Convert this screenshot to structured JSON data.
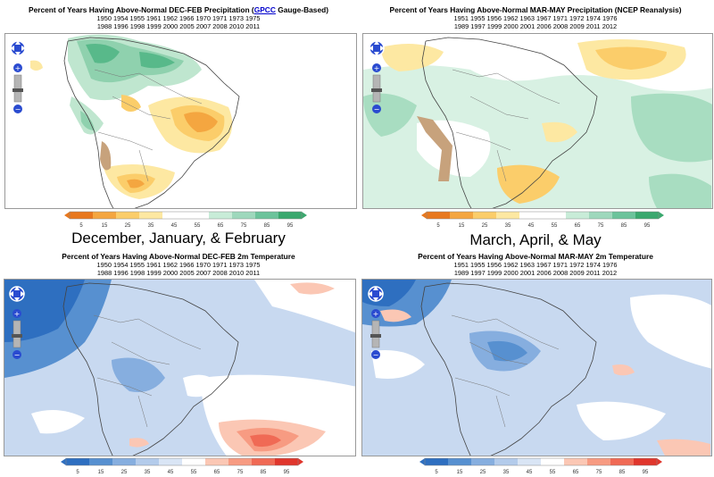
{
  "panels": [
    {
      "title_prefix": "Percent of Years Having Above-Normal DEC-FEB Precipitation (",
      "title_link": "GPCC",
      "title_suffix": " Gauge-Based)",
      "years_line1": "1950 1954 1955 1961 1962 1966 1970 1971 1973 1975",
      "years_line2": "1988 1996 1998 1999 2000 2005 2007 2008 2010 2011"
    },
    {
      "title_prefix": "Percent of Years Having Above-Normal MAR-MAY Precipitation (NCEP Reanalysis)",
      "title_link": "",
      "title_suffix": "",
      "years_line1": "1951 1955 1956 1962 1963 1967 1971 1972 1974 1976",
      "years_line2": "1989 1997 1999 2000 2001 2006 2008 2009 2011 2012"
    },
    {
      "title_prefix": "Percent of Years Having Above-Normal DEC-FEB 2m Temperature",
      "title_link": "",
      "title_suffix": "",
      "years_line1": "1950 1954 1955 1961 1962 1966 1970 1971 1973 1975",
      "years_line2": "1988 1996 1998 1999 2000 2005 2007 2008 2010 2011"
    },
    {
      "title_prefix": "Percent of Years Having Above-Normal MAR-MAY 2m Temperature",
      "title_link": "",
      "title_suffix": "",
      "years_line1": "1951 1955 1956 1962 1963 1967 1971 1972 1974 1976",
      "years_line2": "1989 1997 1999 2000 2001 2006 2008 2009 2011 2012"
    }
  ],
  "season_labels": {
    "left": "December, January, & February",
    "right": "March, April, & May"
  },
  "legend_ticks": [
    "5",
    "15",
    "25",
    "35",
    "45",
    "55",
    "65",
    "75",
    "85",
    "95"
  ],
  "legend_colors": {
    "precip": [
      "#e8781e",
      "#f4a640",
      "#fbcd6a",
      "#fde8a2",
      "#ffffff",
      "#ffffff",
      "#c8ecd8",
      "#9ed8bc",
      "#6cc39b",
      "#3aa86e"
    ],
    "temp": [
      "#2e6fc0",
      "#5790d0",
      "#86aedf",
      "#b3cbeb",
      "#d9e5f5",
      "#ffffff",
      "#fbc7b4",
      "#f79b82",
      "#f06a55",
      "#e0362c"
    ]
  },
  "zoom_controls": {
    "zoom_in": "+",
    "zoom_out": "−"
  }
}
